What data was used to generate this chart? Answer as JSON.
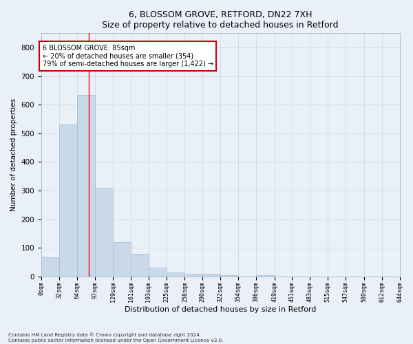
{
  "title1": "6, BLOSSOM GROVE, RETFORD, DN22 7XH",
  "title2": "Size of property relative to detached houses in Retford",
  "xlabel": "Distribution of detached houses by size in Retford",
  "ylabel": "Number of detached properties",
  "bar_edges": [
    0,
    32,
    64,
    97,
    129,
    161,
    193,
    225,
    258,
    290,
    322,
    354,
    386,
    419,
    451,
    483,
    515,
    547,
    580,
    612,
    644
  ],
  "bar_labels": [
    "0sqm",
    "32sqm",
    "64sqm",
    "97sqm",
    "129sqm",
    "161sqm",
    "193sqm",
    "225sqm",
    "258sqm",
    "290sqm",
    "322sqm",
    "354sqm",
    "386sqm",
    "419sqm",
    "451sqm",
    "483sqm",
    "515sqm",
    "547sqm",
    "580sqm",
    "612sqm",
    "644sqm"
  ],
  "bar_heights": [
    68,
    530,
    635,
    310,
    120,
    80,
    30,
    15,
    10,
    8,
    5,
    0,
    5,
    0,
    0,
    0,
    0,
    0,
    0,
    0
  ],
  "bar_color": "#c9d9ea",
  "bar_edge_color": "#aabfd4",
  "grid_color": "#d4dce8",
  "background_color": "#eaf0f8",
  "red_line_x": 85,
  "annotation_text": "6 BLOSSOM GROVE: 85sqm\n← 20% of detached houses are smaller (354)\n79% of semi-detached houses are larger (1,422) →",
  "annotation_box_color": "#ffffff",
  "annotation_box_edge": "#cc0000",
  "ylim": [
    0,
    850
  ],
  "yticks": [
    0,
    100,
    200,
    300,
    400,
    500,
    600,
    700,
    800
  ],
  "footer1": "Contains HM Land Registry data © Crown copyright and database right 2024.",
  "footer2": "Contains public sector information licensed under the Open Government Licence v3.0."
}
